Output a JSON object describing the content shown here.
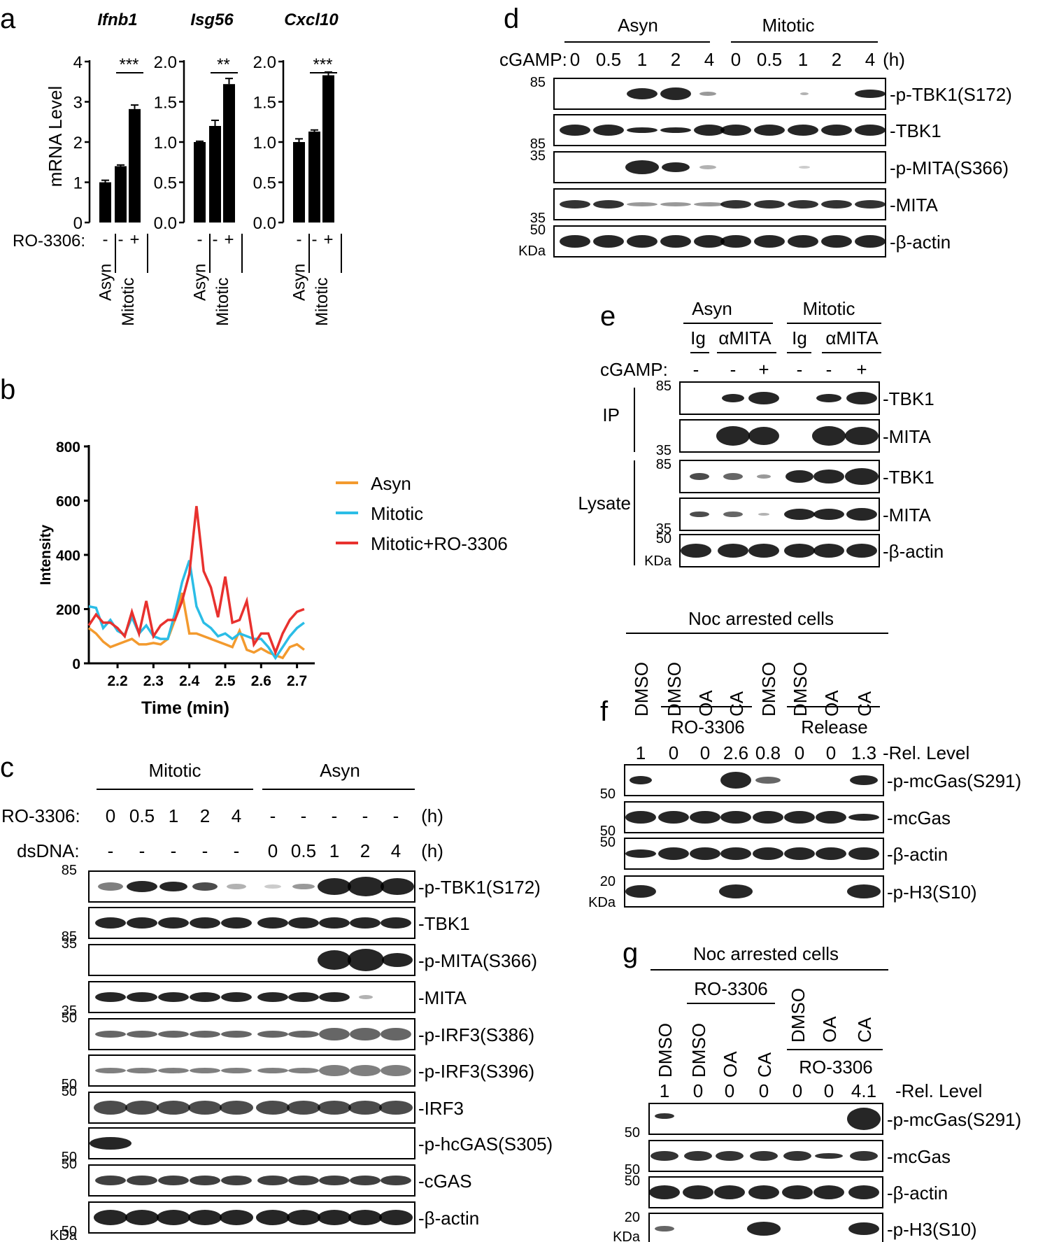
{
  "panels": {
    "a": {
      "label": "a",
      "ylabel": "mRNA Level",
      "treatment_label": "RO-3306:",
      "group_labels": [
        "Asyn",
        "Mitotic"
      ],
      "treatment_marks": [
        "-",
        "-",
        "+"
      ],
      "charts": [
        {
          "title": "Ifnb1",
          "ylim": [
            0,
            4
          ],
          "ticks": [
            "0",
            "1",
            "2",
            "3",
            "4"
          ],
          "values": [
            1.0,
            1.4,
            2.82
          ],
          "errors": [
            0.05,
            0.03,
            0.1
          ],
          "sig": "***"
        },
        {
          "title": "Isg56",
          "ylim": [
            0,
            2.0
          ],
          "ticks": [
            "0.0",
            "0.5",
            "1.0",
            "1.5",
            "2.0"
          ],
          "values": [
            1.0,
            1.2,
            1.72
          ],
          "errors": [
            0.01,
            0.07,
            0.07
          ],
          "sig": "**"
        },
        {
          "title": "Cxcl10",
          "ylim": [
            0,
            2.0
          ],
          "ticks": [
            "0.0",
            "0.5",
            "1.0",
            "1.5",
            "2.0"
          ],
          "values": [
            1.0,
            1.13,
            1.83
          ],
          "errors": [
            0.04,
            0.02,
            0.04
          ],
          "sig": "***"
        }
      ]
    },
    "b": {
      "label": "b",
      "ylabel": "Intensity",
      "xlabel": "Time (min)",
      "yticks": [
        "0",
        "200",
        "400",
        "600",
        "800"
      ],
      "xticks": [
        "2.2",
        "2.3",
        "2.4",
        "2.5",
        "2.6",
        "2.7"
      ]
    },
    "c": {
      "label": "c",
      "header_groups": [
        "Mitotic",
        "Asyn"
      ],
      "row1_label": "RO-3306:",
      "row1_values": [
        "0",
        "0.5",
        "1",
        "2",
        "4",
        "-",
        "-",
        "-",
        "-",
        "-"
      ],
      "row2_label": "dsDNA:",
      "row2_values": [
        "-",
        "-",
        "-",
        "-",
        "-",
        "0",
        "0.5",
        "1",
        "2",
        "4"
      ],
      "unit": "(h)",
      "blots": [
        "-p-TBK1(S172)",
        "-TBK1",
        "-p-MITA(S366)",
        "-MITA",
        "-p-IRF3(S386)",
        "-p-IRF3(S396)",
        "-IRF3",
        "-p-hcGAS(S305)",
        "-cGAS",
        "-β-actin"
      ],
      "markers": [
        "85",
        "85",
        "35",
        "35",
        "50",
        "50",
        "50",
        "50",
        "50",
        "50"
      ],
      "kda": "KDa"
    },
    "d": {
      "label": "d",
      "header_groups": [
        "Asyn",
        "Mitotic"
      ],
      "row_label": "cGAMP:",
      "row_values": [
        "0",
        "0.5",
        "1",
        "2",
        "4",
        "0",
        "0.5",
        "1",
        "2",
        "4"
      ],
      "unit": "(h)",
      "blots": [
        "-p-TBK1(S172)",
        "-TBK1",
        "-p-MITA(S366)",
        "-MITA",
        "-β-actin"
      ],
      "markers": [
        "85",
        "85",
        "35",
        "35",
        "50"
      ],
      "kda": "KDa"
    },
    "e": {
      "label": "e",
      "header_groups": [
        "Asyn",
        "Mitotic"
      ],
      "sub_groups": [
        "Ig",
        "αMITA",
        "Ig",
        "αMITA"
      ],
      "row_label": "cGAMP:",
      "row_values": [
        "-",
        "-",
        "+",
        "-",
        "-",
        "+"
      ],
      "side_labels": [
        "IP",
        "Lysate"
      ],
      "blots": [
        "-TBK1",
        "-MITA",
        "-TBK1",
        "-MITA",
        "-β-actin"
      ],
      "markers": [
        "85",
        "35",
        "85",
        "35",
        "50"
      ],
      "kda": "KDa"
    },
    "f": {
      "label": "f",
      "header": "Noc arrested cells",
      "lanes": [
        "DMSO",
        "DMSO",
        "OA",
        "CA",
        "DMSO",
        "DMSO",
        "OA",
        "CA"
      ],
      "sub_groups": [
        "RO-3306",
        "Release"
      ],
      "rel_values": [
        "1",
        "0",
        "0",
        "2.6",
        "0.8",
        "0",
        "0",
        "1.3"
      ],
      "rel_label": "-Rel. Level",
      "blots": [
        "-p-mcGas(S291)",
        "-mcGas",
        "-β-actin",
        "-p-H3(S10)"
      ],
      "markers": [
        "50",
        "50",
        "50",
        "20"
      ],
      "kda": "KDa"
    },
    "g": {
      "label": "g",
      "header": "Noc arrested cells",
      "lanes": [
        "DMSO",
        "DMSO",
        "OA",
        "CA",
        "DMSO",
        "OA",
        "CA"
      ],
      "sub_groups": [
        "RO-3306",
        "RO-3306"
      ],
      "rel_values": [
        "1",
        "0",
        "0",
        "0",
        "0",
        "0",
        "4.1"
      ],
      "rel_label": "-Rel. Level",
      "blots": [
        "-p-mcGas(S291)",
        "-mcGas",
        "-β-actin",
        "-p-H3(S10)"
      ],
      "markers": [
        "50",
        "50",
        "50",
        "20"
      ],
      "kda": "KDa"
    }
  },
  "chart_data": [
    {
      "type": "bar",
      "title": "Ifnb1",
      "ylabel": "mRNA Level",
      "categories": [
        "Asyn",
        "Mitotic -",
        "Mitotic +"
      ],
      "values": [
        1.0,
        1.4,
        2.82
      ],
      "ylim": [
        0,
        4
      ]
    },
    {
      "type": "bar",
      "title": "Isg56",
      "categories": [
        "Asyn",
        "Mitotic -",
        "Mitotic +"
      ],
      "values": [
        1.0,
        1.2,
        1.72
      ],
      "ylim": [
        0,
        2.0
      ]
    },
    {
      "type": "bar",
      "title": "Cxcl10",
      "categories": [
        "Asyn",
        "Mitotic -",
        "Mitotic +"
      ],
      "values": [
        1.0,
        1.13,
        1.83
      ],
      "ylim": [
        0,
        2.0
      ]
    },
    {
      "type": "line",
      "xlabel": "Time (min)",
      "ylabel": "Intensity",
      "xlim": [
        2.12,
        2.73
      ],
      "ylim": [
        0,
        800
      ],
      "series": [
        {
          "name": "Asyn",
          "color": "#f39a2e",
          "x": [
            2.12,
            2.14,
            2.16,
            2.18,
            2.2,
            2.22,
            2.24,
            2.26,
            2.28,
            2.3,
            2.32,
            2.34,
            2.36,
            2.38,
            2.4,
            2.42,
            2.44,
            2.46,
            2.48,
            2.5,
            2.52,
            2.54,
            2.56,
            2.58,
            2.6,
            2.62,
            2.64,
            2.66,
            2.68,
            2.7,
            2.72
          ],
          "y": [
            130,
            110,
            80,
            60,
            70,
            80,
            90,
            70,
            70,
            75,
            70,
            90,
            160,
            260,
            110,
            110,
            100,
            90,
            80,
            70,
            60,
            120,
            50,
            40,
            55,
            40,
            30,
            20,
            60,
            70,
            50
          ]
        },
        {
          "name": "Mitotic",
          "color": "#2bbde6",
          "x": [
            2.12,
            2.14,
            2.16,
            2.18,
            2.2,
            2.22,
            2.24,
            2.26,
            2.28,
            2.3,
            2.32,
            2.34,
            2.36,
            2.38,
            2.4,
            2.42,
            2.44,
            2.46,
            2.48,
            2.5,
            2.52,
            2.54,
            2.56,
            2.58,
            2.6,
            2.62,
            2.64,
            2.66,
            2.68,
            2.7,
            2.72
          ],
          "y": [
            210,
            205,
            130,
            160,
            120,
            105,
            170,
            110,
            140,
            100,
            90,
            90,
            185,
            300,
            380,
            210,
            150,
            130,
            100,
            110,
            90,
            110,
            100,
            90,
            90,
            60,
            20,
            60,
            100,
            130,
            150
          ]
        },
        {
          "name": "Mitotic+RO-3306",
          "color": "#e8312e",
          "x": [
            2.12,
            2.14,
            2.16,
            2.18,
            2.2,
            2.22,
            2.24,
            2.26,
            2.28,
            2.3,
            2.32,
            2.34,
            2.36,
            2.38,
            2.4,
            2.42,
            2.44,
            2.46,
            2.48,
            2.5,
            2.52,
            2.54,
            2.56,
            2.58,
            2.6,
            2.62,
            2.64,
            2.66,
            2.68,
            2.7,
            2.72
          ],
          "y": [
            140,
            180,
            150,
            150,
            130,
            100,
            190,
            110,
            230,
            100,
            140,
            160,
            160,
            230,
            330,
            580,
            340,
            280,
            170,
            320,
            150,
            160,
            230,
            70,
            110,
            110,
            40,
            110,
            160,
            190,
            200
          ]
        }
      ]
    }
  ]
}
